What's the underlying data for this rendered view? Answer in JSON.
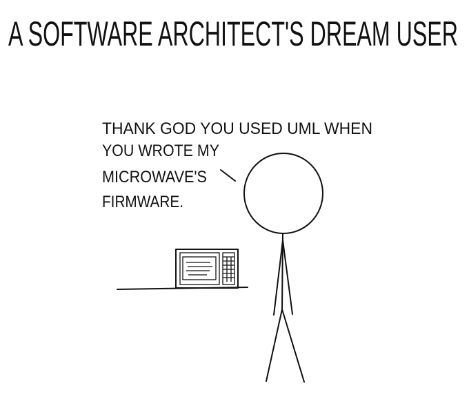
{
  "title": "A SOFTWARE ARCHITECT'S DREAM USER",
  "speech": {
    "lines": [
      "THANK GOD YOU USED UML WHEN",
      "YOU WROTE MY",
      "MICROWAVE'S",
      "FIRMWARE."
    ]
  }
}
